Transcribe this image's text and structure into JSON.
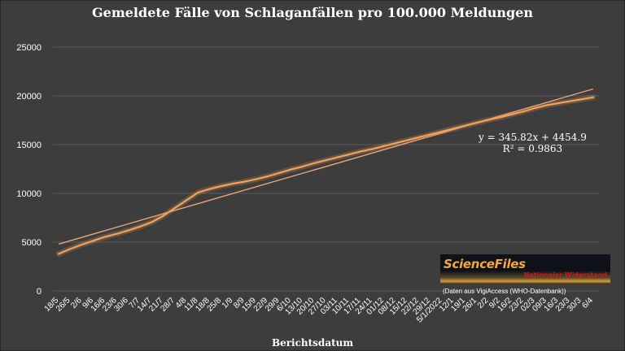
{
  "chart_data": {
    "type": "line",
    "title": "Gemeldete Fälle von Schlaganfällen pro 100.000 Meldungen",
    "xlabel": "Berichtsdatum",
    "ylabel": "",
    "ylim": [
      0,
      25000
    ],
    "yticks": [
      0,
      5000,
      10000,
      15000,
      20000,
      25000
    ],
    "grid": true,
    "categories": [
      "18/5",
      "26/5",
      "2/6",
      "9/6",
      "16/6",
      "23/6",
      "30/6",
      "7/7",
      "14/7",
      "21/7",
      "28/7",
      "4/8",
      "11/8",
      "18/8",
      "25/8",
      "1/9",
      "8/9",
      "15/9",
      "22/9",
      "29/9",
      "6/10",
      "13/10",
      "20/10",
      "27/10",
      "03/11",
      "10/11",
      "17/11",
      "24/11",
      "01/12",
      "08/12",
      "15/12",
      "22/12",
      "29/12",
      "5/1/2022",
      "12/1",
      "19/1",
      "26/1",
      "2/2",
      "9/2",
      "16/2",
      "23/2",
      "02/3",
      "09/3",
      "16/3",
      "23/3",
      "30/3",
      "6/4"
    ],
    "series": [
      {
        "values": [
          3800,
          4300,
          4750,
          5150,
          5550,
          5850,
          6200,
          6600,
          7050,
          7700,
          8500,
          9300,
          10100,
          10450,
          10750,
          11000,
          11200,
          11450,
          11750,
          12100,
          12450,
          12750,
          13100,
          13400,
          13700,
          14000,
          14300,
          14550,
          14850,
          15150,
          15450,
          15750,
          16050,
          16350,
          16650,
          16950,
          17250,
          17550,
          17800,
          18100,
          18400,
          18750,
          19050,
          19250,
          19450,
          19650,
          19850
        ],
        "color": "#f2a15a"
      }
    ],
    "trendline": {
      "equation": "y = 345.82x + 4454.9",
      "r2": "R² = 0.9863",
      "slope": 345.82,
      "intercept": 4454.9,
      "color": "#e8a47a"
    }
  },
  "logo": {
    "brand": "ScienceFiles",
    "subtitle": "Nationaler Widerstand"
  },
  "source_note": "(Daten aus VigiAccess (WHO-Datenbank))",
  "colors": {
    "background": "#3d3d3d",
    "grid": "#5a5a5a",
    "text": "#ffffff"
  }
}
